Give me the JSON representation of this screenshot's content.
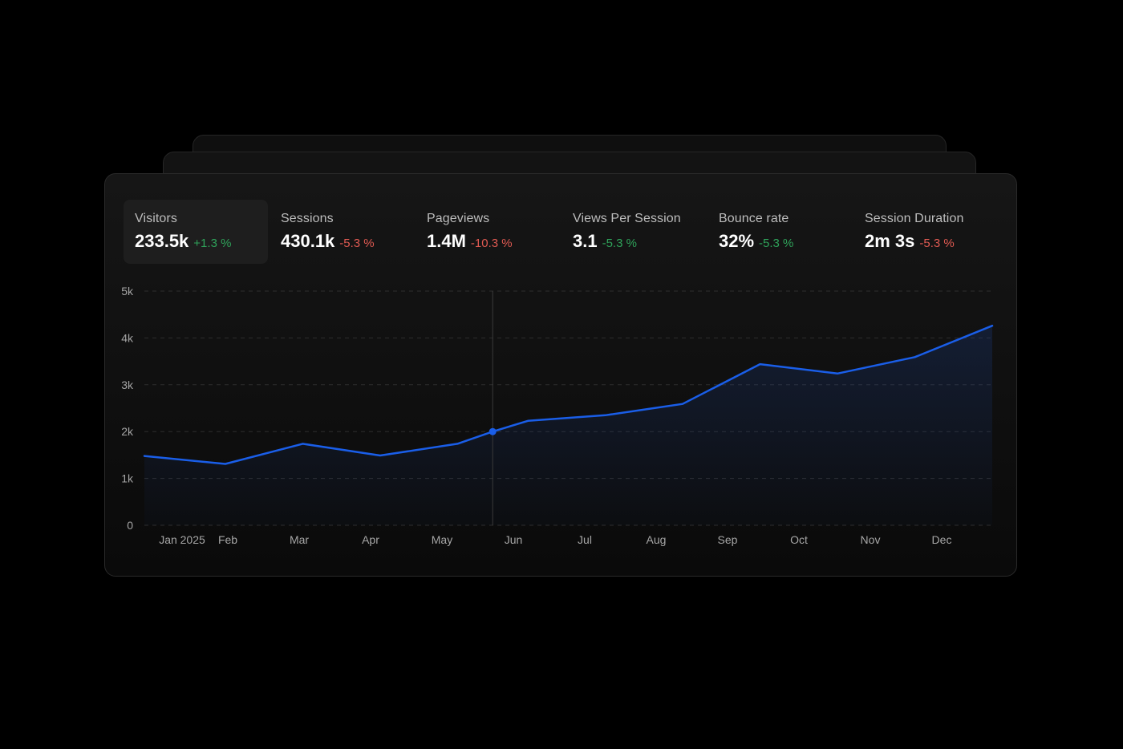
{
  "metrics": [
    {
      "label": "Visitors",
      "value": "233.5k",
      "change": "+1.3 %",
      "trend": "positive",
      "active": true
    },
    {
      "label": "Sessions",
      "value": "430.1k",
      "change": "-5.3 %",
      "trend": "negative",
      "active": false
    },
    {
      "label": "Pageviews",
      "value": "1.4M",
      "change": "-10.3 %",
      "trend": "negative",
      "active": false
    },
    {
      "label": "Views Per Session",
      "value": "3.1",
      "change": "-5.3 %",
      "trend": "positive",
      "active": false
    },
    {
      "label": "Bounce rate",
      "value": "32%",
      "change": "-5.3 %",
      "trend": "positive",
      "active": false
    },
    {
      "label": "Session Duration",
      "value": "2m 3s",
      "change": "-5.3 %",
      "trend": "negative",
      "active": false
    }
  ],
  "colors": {
    "line": "#1a5ee8",
    "positive": "#2fa35a",
    "negative": "#e05a52"
  },
  "chart_data": {
    "type": "area",
    "x": [
      "Jan 2025",
      "Feb",
      "Mar",
      "Apr",
      "May",
      "Jun",
      "Jul",
      "Aug",
      "Sep",
      "Oct",
      "Nov",
      "Dec"
    ],
    "y_ticks": [
      "0",
      "1k",
      "2k",
      "3k",
      "4k",
      "5k"
    ],
    "ylim": [
      0,
      5000
    ],
    "grid": true,
    "series": [
      {
        "points": [
          [
            0,
            1480
          ],
          [
            1.15,
            1310
          ],
          [
            2.25,
            1740
          ],
          [
            3.35,
            1490
          ],
          [
            4.45,
            1740
          ],
          [
            4.95,
            2000
          ],
          [
            5.45,
            2230
          ],
          [
            6.55,
            2350
          ],
          [
            7.65,
            2590
          ],
          [
            8.75,
            3440
          ],
          [
            9.85,
            3240
          ],
          [
            10.95,
            3590
          ],
          [
            12.05,
            4260
          ]
        ]
      }
    ],
    "highlight": {
      "x": 4.95,
      "y": 2000
    }
  }
}
